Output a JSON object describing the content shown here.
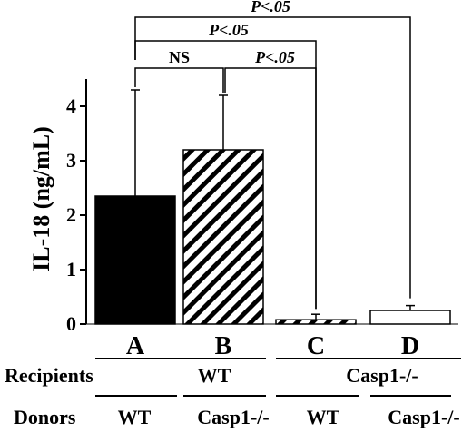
{
  "chart_data": {
    "type": "bar",
    "ylabel": "IL-18 (ng/mL)",
    "ylim": [
      0,
      4.6
    ],
    "yticks": [
      0,
      1,
      2,
      3,
      4
    ],
    "categories": [
      "A",
      "B",
      "C",
      "D"
    ],
    "values": [
      2.35,
      3.2,
      0.08,
      0.25
    ],
    "errors": [
      1.95,
      1.0,
      0.1,
      0.09
    ],
    "fills": [
      "solid-black",
      "hatched",
      "hatched",
      "white"
    ],
    "comparisons": [
      {
        "from": 0,
        "to": 1,
        "label": "NS"
      },
      {
        "from": 1,
        "to": 2,
        "label": "P<.05"
      },
      {
        "from": 0,
        "to": 2,
        "label": "P<.05"
      },
      {
        "from": 0,
        "to": 3,
        "label": "P<.05"
      }
    ],
    "groups": {
      "recipients_label": "Recipients",
      "donors_label": "Donors",
      "recipients": [
        {
          "label": "WT",
          "span": [
            0,
            1
          ]
        },
        {
          "label": "Casp1-/-",
          "span": [
            2,
            3
          ]
        }
      ],
      "donors": [
        "WT",
        "Casp1-/-",
        "WT",
        "Casp1-/-"
      ]
    }
  }
}
